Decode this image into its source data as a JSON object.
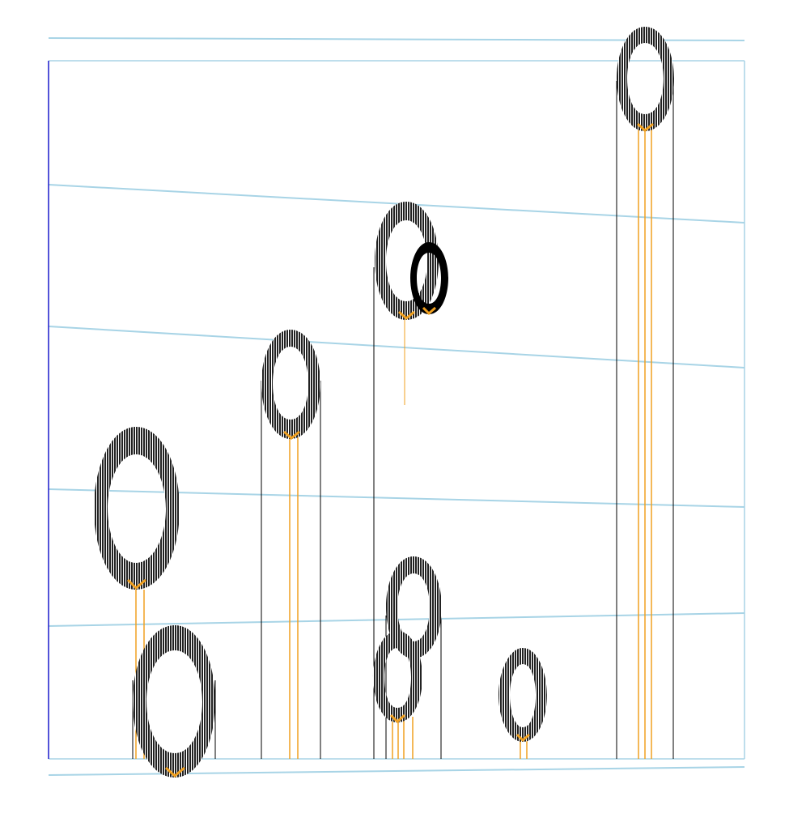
{
  "scene": {
    "description_colors": {
      "background": "#ffffff",
      "guide_line": "#a8d4e6",
      "frame_left": "#1a1acc",
      "ring_dark": "#2a2a2a",
      "ring_black": "#000000",
      "stem_orange": "#f0a020",
      "stem_black": "#000000"
    }
  }
}
